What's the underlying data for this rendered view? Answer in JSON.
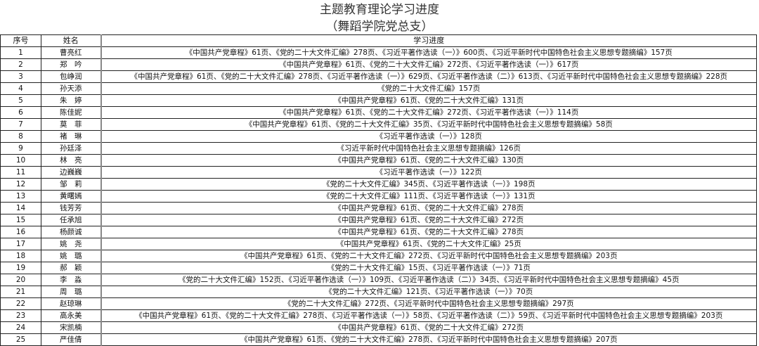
{
  "title": "主题教育理论学习进度",
  "subtitle": "（舞蹈学院党总支）",
  "columns": [
    "序号",
    "姓名",
    "学习进度"
  ],
  "rows": [
    [
      "1",
      "曹亮红",
      "《中国共产党章程》61页、《党的二十大文件汇编》278页、《习近平著作选读（一）》600页、《习近平新时代中国特色社会主义思想专题摘编》157页"
    ],
    [
      "2",
      "郑　吟",
      "《中国共产党章程》61页、《党的二十大文件汇编》272页、《习近平著作选读（一）》617页"
    ],
    [
      "3",
      "包峥润",
      "《中国共产党章程》61页、《党的二十大文件汇编》278页、《习近平著作选读（一）》629页、《习近平著作选读（二）》613页、《习近平新时代中国特色社会主义思想专题摘编》228页"
    ],
    [
      "4",
      "孙天添",
      "《党的二十大文件汇编》157页"
    ],
    [
      "5",
      "朱　婷",
      "《中国共产党章程》61页、《党的二十大文件汇编》131页"
    ],
    [
      "6",
      "陈佳妮",
      "《中国共产党章程》61页、《党的二十大文件汇编》272页、《习近平著作选读（一）》114页"
    ],
    [
      "7",
      "莫　菲",
      "《中国共产党章程》61页、《党的二十大文件汇编》35页、《习近平新时代中国特色社会主义思想专题摘编》58页"
    ],
    [
      "8",
      "褚　琳",
      "《习近平著作选读（一）》128页"
    ],
    [
      "9",
      "孙廷泽",
      "《习近平新时代中国特色社会主义思想专题摘编》126页"
    ],
    [
      "10",
      "林　亮",
      "《中国共产党章程》61页、《党的二十大文件汇编》130页"
    ],
    [
      "11",
      "边巍巍",
      "《习近平著作选读（一）》122页"
    ],
    [
      "12",
      "邹　莉",
      "《党的二十大文件汇编》345页、《习近平著作选读（一）》198页"
    ],
    [
      "13",
      "黄曙嫣",
      "《党的二十大文件汇编》111页、《习近平著作选读（一）》131页"
    ],
    [
      "14",
      "钱芳芳",
      "《中国共产党章程》61页、《党的二十大文件汇编》278页"
    ],
    [
      "15",
      "任承旭",
      "《中国共产党章程》61页、《党的二十大文件汇编》272页"
    ],
    [
      "16",
      "杨颜诚",
      "《中国共产党章程》61页、《党的二十大文件汇编》278页"
    ],
    [
      "17",
      "姚　尧",
      "《中国共产党章程》61页、《党的二十大文件汇编》25页"
    ],
    [
      "18",
      "姚　璐",
      "《中国共产党章程》61页、《党的二十大文件汇编》272页、《习近平新时代中国特色社会主义思想专题摘编》203页"
    ],
    [
      "19",
      "郝　颖",
      "《党的二十大文件汇编》15页、《习近平著作选读（一）》71页"
    ],
    [
      "20",
      "李　淼",
      "《党的二十大文件汇编》152页、《习近平著作选读（一）》109页、《习近平著作选读（二）》34页、《习近平新时代中国特色社会主义思想专题摘编》45页"
    ],
    [
      "21",
      "周　璐",
      "《党的二十大文件汇编》121页、《习近平著作选读（一）》70页"
    ],
    [
      "22",
      "赵琼琳",
      "《党的二十大文件汇编》272页、《习近平新时代中国特色社会主义思想专题摘编》297页"
    ],
    [
      "23",
      "高永美",
      "《中国共产党章程》61页、《党的二十大文件汇编》278页、《习近平著作选读（一）》58页、《习近平著作选读（二）》59页、《习近平新时代中国特色社会主义思想专题摘编》203页"
    ],
    [
      "24",
      "宋凯楠",
      "《中国共产党章程》61页、《党的二十大文件汇编》272页"
    ],
    [
      "25",
      "严佳倩",
      "《中国共产党章程》61页、《党的二十大文件汇编》278页、《习近平新时代中国特色社会主义思想专题摘编》207页"
    ]
  ]
}
